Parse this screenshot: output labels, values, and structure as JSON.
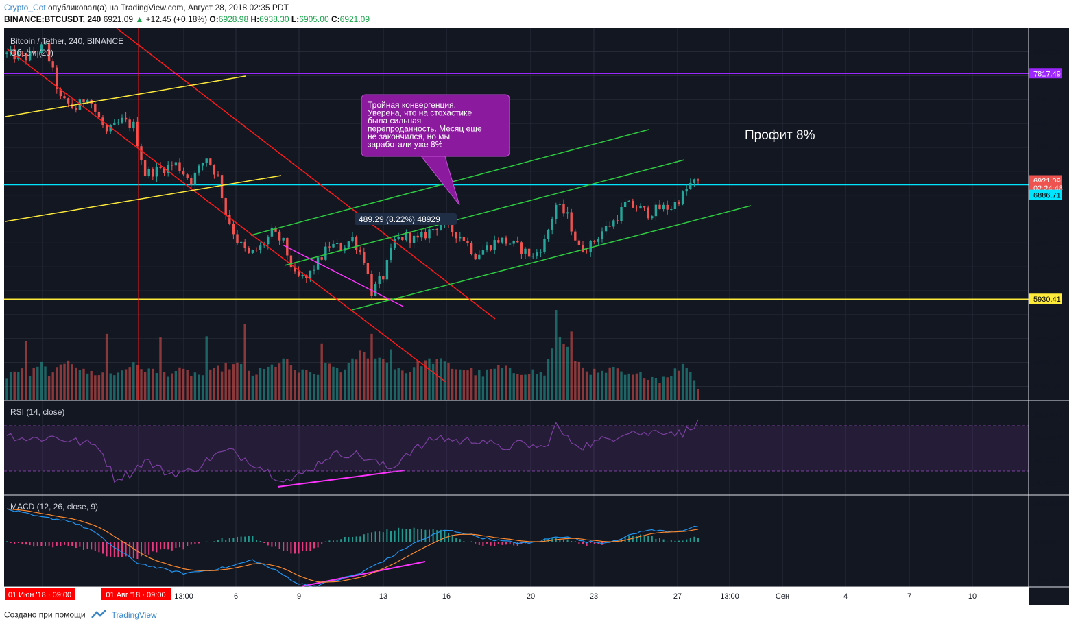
{
  "header": {
    "author": "Crypto_Cot",
    "published_text": " опубликовал(а) на TradingView.com, Август 28, 2018 02:35 PDT",
    "symbol": "BINANCE:BTCUSDT, 240",
    "last": "6921.09",
    "change": "+12.45 (+0.18%)",
    "o_label": "O:",
    "o_value": "6928.98",
    "h_label": "H:",
    "h_value": "6938.30",
    "l_label": "L:",
    "l_value": "6905.00",
    "c_label": "C:",
    "c_value": "6921.09"
  },
  "legend": {
    "main": "Bitcoin / Tether, 240, BINANCE",
    "volume": "Объём (20)",
    "rsi": "RSI (14, close)",
    "macd": "MACD (12, 26, close, 9)"
  },
  "annotations": {
    "callout": [
      "Тройная конвергенция.",
      "Уверена, что на стохастике",
      "была сильная",
      "перепроданность. Месяц еще",
      "не закончился, но мы",
      "заработали уже 8%"
    ],
    "profit": "Профит 8%",
    "measure": "489.29 (8.22%) 48929"
  },
  "footer": {
    "text": "Создано при помощи",
    "brand": "TradingView"
  },
  "colors": {
    "background": "#131722",
    "up": "#26a69a",
    "down": "#ef5350",
    "red_line": "#ff1a1a",
    "yellow_line": "#ffeb3b",
    "green_line": "#2ecc40",
    "cyan_line": "#00e5ff",
    "purple_line": "#9c27ff",
    "magenta_line": "#ff33ff",
    "rsi_line": "#7b3fa0",
    "macd_line": "#2196f3",
    "signal_line": "#ff8a30",
    "callout_bg": "#8b1a9e"
  },
  "chart_data": {
    "type": "candlestick",
    "price_axis": {
      "ticks": [
        "8000.00",
        "7800.00",
        "7600.00",
        "7400.00",
        "7200.00",
        "7000.00",
        "6800.00",
        "6600.00",
        "6400.00",
        "6200.00",
        "6000.00",
        "5800.00",
        "5600.00",
        "5400.00",
        "5200.00"
      ],
      "range": [
        5100,
        8100
      ],
      "labels": [
        {
          "text": "7817.49",
          "value": 7817.49,
          "bg": "#9c27ff",
          "fg": "#ffffff"
        },
        {
          "text": "6921.09",
          "value": 6921.09,
          "bg": "#ef5350",
          "fg": "#ffffff"
        },
        {
          "text": "02:24:48",
          "value": 6862,
          "bg": "#ef5350",
          "fg": "#ffffff"
        },
        {
          "text": "6886.71",
          "value": 6800,
          "bg": "#00e5ff",
          "fg": "#000000"
        },
        {
          "text": "5930.41",
          "value": 5930.41,
          "bg": "#ffeb3b",
          "fg": "#000000"
        }
      ]
    },
    "rsi_axis": {
      "ticks": [
        "80.0000",
        "60.0000",
        "40.0000",
        "20.0000"
      ],
      "range": [
        10,
        90
      ],
      "upper_band": 70,
      "lower_band": 30
    },
    "macd_axis": {
      "ticks": [
        "200.0000",
        "0.0000",
        "-200.0000"
      ],
      "range": [
        -240,
        240
      ]
    },
    "time_axis": {
      "labels": [
        "01 Июн '18 · 09:00",
        "01 Авг '18 · 09:00",
        "13:00",
        "6",
        "9",
        "13",
        "16",
        "20",
        "23",
        "27",
        "13:00",
        "Сен",
        "4",
        "7",
        "10"
      ],
      "highlighted": [
        "01 Июн '18 · 09:00",
        "01 Авг '18 · 09:00"
      ]
    },
    "horizontal_lines": [
      {
        "value": 7817.49,
        "color": "purple"
      },
      {
        "value": 6886.71,
        "color": "cyan"
      },
      {
        "value": 5930.41,
        "color": "yellow"
      }
    ],
    "price_anchors": [
      [
        0,
        7980
      ],
      [
        5,
        7950
      ],
      [
        10,
        8050
      ],
      [
        14,
        7600
      ],
      [
        18,
        7520
      ],
      [
        21,
        7640
      ],
      [
        23,
        7500
      ],
      [
        26,
        7320
      ],
      [
        30,
        7420
      ],
      [
        33,
        7380
      ],
      [
        36,
        6980
      ],
      [
        40,
        7020
      ],
      [
        44,
        7060
      ],
      [
        48,
        6920
      ],
      [
        52,
        7120
      ],
      [
        55,
        6950
      ],
      [
        57,
        6650
      ],
      [
        60,
        6420
      ],
      [
        63,
        6300
      ],
      [
        66,
        6360
      ],
      [
        69,
        6490
      ],
      [
        72,
        6400
      ],
      [
        75,
        6120
      ],
      [
        78,
        6100
      ],
      [
        81,
        6240
      ],
      [
        84,
        6380
      ],
      [
        87,
        6360
      ],
      [
        90,
        6440
      ],
      [
        93,
        6270
      ],
      [
        95,
        5990
      ],
      [
        98,
        6120
      ],
      [
        101,
        6420
      ],
      [
        104,
        6460
      ],
      [
        107,
        6420
      ],
      [
        110,
        6500
      ],
      [
        113,
        6560
      ],
      [
        116,
        6500
      ],
      [
        119,
        6440
      ],
      [
        122,
        6300
      ],
      [
        125,
        6360
      ],
      [
        128,
        6430
      ],
      [
        131,
        6400
      ],
      [
        134,
        6350
      ],
      [
        137,
        6280
      ],
      [
        140,
        6410
      ],
      [
        143,
        6720
      ],
      [
        146,
        6620
      ],
      [
        149,
        6350
      ],
      [
        152,
        6380
      ],
      [
        155,
        6500
      ],
      [
        158,
        6580
      ],
      [
        161,
        6720
      ],
      [
        164,
        6700
      ],
      [
        167,
        6650
      ],
      [
        170,
        6690
      ],
      [
        173,
        6700
      ],
      [
        176,
        6800
      ],
      [
        178,
        6890
      ],
      [
        180,
        6921
      ]
    ],
    "volume_anchors": [
      [
        0,
        5270
      ],
      [
        3,
        5340
      ],
      [
        6,
        5300
      ],
      [
        9,
        5380
      ],
      [
        12,
        5290
      ],
      [
        16,
        5440
      ],
      [
        20,
        5320
      ],
      [
        24,
        5310
      ],
      [
        28,
        5300
      ],
      [
        32,
        5380
      ],
      [
        36,
        5350
      ],
      [
        40,
        5300
      ],
      [
        44,
        5330
      ],
      [
        48,
        5310
      ],
      [
        52,
        5290
      ],
      [
        56,
        5360
      ],
      [
        60,
        5380
      ],
      [
        64,
        5300
      ],
      [
        68,
        5350
      ],
      [
        72,
        5420
      ],
      [
        76,
        5320
      ],
      [
        80,
        5300
      ],
      [
        84,
        5380
      ],
      [
        88,
        5330
      ],
      [
        92,
        5480
      ],
      [
        96,
        5450
      ],
      [
        100,
        5390
      ],
      [
        104,
        5320
      ],
      [
        108,
        5400
      ],
      [
        112,
        5420
      ],
      [
        116,
        5360
      ],
      [
        120,
        5340
      ],
      [
        124,
        5300
      ],
      [
        128,
        5360
      ],
      [
        132,
        5320
      ],
      [
        136,
        5330
      ],
      [
        140,
        5300
      ],
      [
        143,
        5650
      ],
      [
        146,
        5500
      ],
      [
        150,
        5360
      ],
      [
        154,
        5300
      ],
      [
        158,
        5340
      ],
      [
        162,
        5280
      ],
      [
        166,
        5300
      ],
      [
        170,
        5260
      ],
      [
        174,
        5330
      ],
      [
        177,
        5380
      ],
      [
        180,
        5200
      ]
    ],
    "volume_spikes": [
      {
        "i": 5,
        "v": 5580
      },
      {
        "i": 26,
        "v": 5640
      },
      {
        "i": 40,
        "v": 5610
      },
      {
        "i": 52,
        "v": 5620
      },
      {
        "i": 62,
        "v": 5720
      },
      {
        "i": 82,
        "v": 5560
      },
      {
        "i": 95,
        "v": 5640
      },
      {
        "i": 100,
        "v": 5510
      },
      {
        "i": 143,
        "v": 5840
      },
      {
        "i": 147,
        "v": 5660
      }
    ],
    "rsi_anchors": [
      [
        0,
        62
      ],
      [
        6,
        58
      ],
      [
        12,
        60
      ],
      [
        18,
        56
      ],
      [
        24,
        52
      ],
      [
        28,
        24
      ],
      [
        32,
        28
      ],
      [
        36,
        40
      ],
      [
        42,
        28
      ],
      [
        48,
        30
      ],
      [
        54,
        44
      ],
      [
        58,
        48
      ],
      [
        64,
        38
      ],
      [
        70,
        26
      ],
      [
        74,
        22
      ],
      [
        78,
        30
      ],
      [
        84,
        44
      ],
      [
        90,
        46
      ],
      [
        96,
        38
      ],
      [
        100,
        32
      ],
      [
        104,
        46
      ],
      [
        108,
        52
      ],
      [
        112,
        60
      ],
      [
        118,
        56
      ],
      [
        124,
        58
      ],
      [
        128,
        50
      ],
      [
        134,
        54
      ],
      [
        140,
        50
      ],
      [
        143,
        70
      ],
      [
        146,
        58
      ],
      [
        150,
        52
      ],
      [
        154,
        56
      ],
      [
        158,
        60
      ],
      [
        162,
        66
      ],
      [
        166,
        62
      ],
      [
        170,
        66
      ],
      [
        174,
        64
      ],
      [
        176,
        62
      ],
      [
        178,
        70
      ],
      [
        180,
        72
      ]
    ],
    "macd_anchors": [
      [
        0,
        170
      ],
      [
        8,
        130
      ],
      [
        16,
        110
      ],
      [
        22,
        60
      ],
      [
        28,
        -30
      ],
      [
        34,
        -110
      ],
      [
        40,
        -140
      ],
      [
        46,
        -165
      ],
      [
        52,
        -150
      ],
      [
        58,
        -130
      ],
      [
        64,
        -95
      ],
      [
        70,
        -150
      ],
      [
        76,
        -220
      ],
      [
        80,
        -230
      ],
      [
        86,
        -200
      ],
      [
        92,
        -165
      ],
      [
        96,
        -120
      ],
      [
        100,
        -80
      ],
      [
        104,
        -30
      ],
      [
        108,
        10
      ],
      [
        114,
        60
      ],
      [
        118,
        50
      ],
      [
        124,
        20
      ],
      [
        130,
        0
      ],
      [
        136,
        -10
      ],
      [
        142,
        20
      ],
      [
        146,
        30
      ],
      [
        150,
        0
      ],
      [
        156,
        -5
      ],
      [
        162,
        30
      ],
      [
        166,
        60
      ],
      [
        172,
        55
      ],
      [
        176,
        60
      ],
      [
        180,
        80
      ]
    ],
    "drawings": [
      {
        "kind": "channel-line",
        "color": "red"
      },
      {
        "kind": "channel-line",
        "color": "yellow"
      },
      {
        "kind": "channel-line",
        "color": "green"
      },
      {
        "kind": "divergence",
        "color": "magenta"
      }
    ]
  }
}
